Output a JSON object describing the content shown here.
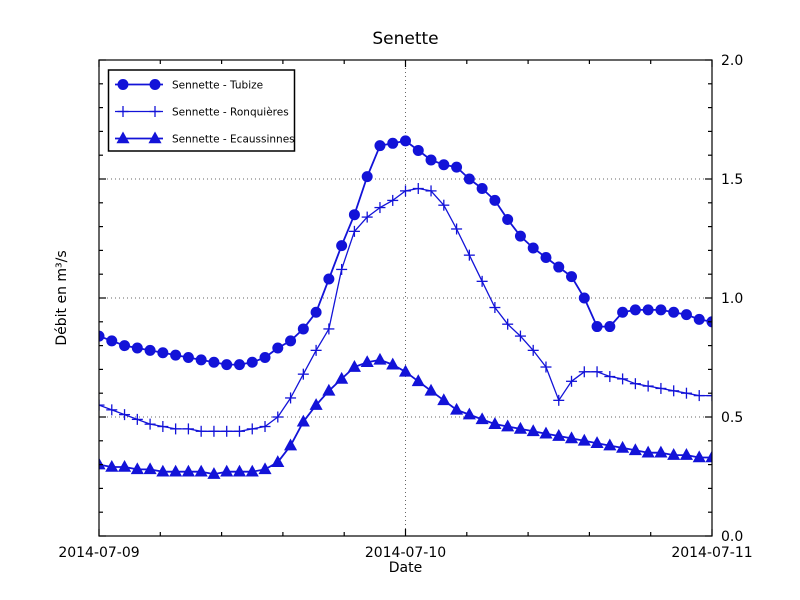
{
  "figure": {
    "title": "Senette",
    "xlabel": "Date",
    "ylabel": "Débit en m³/s"
  },
  "chart_data": {
    "type": "line",
    "title": "Senette",
    "xlabel": "Date",
    "ylabel": "Débit en m³/s",
    "x_start": "2014-07-09 00:00",
    "x_end": "2014-07-11 00:00",
    "x_step_hours": 1,
    "xtick_labels": [
      "2014-07-09",
      "2014-07-10",
      "2014-07-11"
    ],
    "ytick_labels": [
      "0.0",
      "0.5",
      "1.0",
      "1.5",
      "2.0"
    ],
    "yticks": [
      0.0,
      0.5,
      1.0,
      1.5,
      2.0
    ],
    "ylim": [
      0.0,
      2.0
    ],
    "grid": "dotted on major ticks",
    "legend_position": "upper-left",
    "line_color": "#1313D8",
    "axis_color": "#000000",
    "grid_color": "#666666",
    "series": [
      {
        "name": "Sennette - Tubize",
        "marker": "circle",
        "values": [
          0.84,
          0.82,
          0.8,
          0.79,
          0.78,
          0.77,
          0.76,
          0.75,
          0.74,
          0.73,
          0.72,
          0.72,
          0.73,
          0.75,
          0.79,
          0.82,
          0.87,
          0.94,
          1.08,
          1.22,
          1.35,
          1.51,
          1.64,
          1.65,
          1.66,
          1.62,
          1.58,
          1.56,
          1.55,
          1.5,
          1.46,
          1.41,
          1.33,
          1.26,
          1.21,
          1.17,
          1.13,
          1.09,
          1.0,
          0.88,
          0.88,
          0.94,
          0.95,
          0.95,
          0.95,
          0.94,
          0.93,
          0.91,
          0.9
        ]
      },
      {
        "name": "Sennette - Ronquières",
        "marker": "plus",
        "values": [
          0.55,
          0.53,
          0.51,
          0.49,
          0.47,
          0.46,
          0.45,
          0.45,
          0.44,
          0.44,
          0.44,
          0.44,
          0.45,
          0.46,
          0.5,
          0.58,
          0.68,
          0.78,
          0.87,
          1.12,
          1.28,
          1.34,
          1.38,
          1.41,
          1.45,
          1.46,
          1.45,
          1.39,
          1.29,
          1.18,
          1.07,
          0.96,
          0.89,
          0.84,
          0.78,
          0.71,
          0.57,
          0.65,
          0.69,
          0.69,
          0.67,
          0.66,
          0.64,
          0.63,
          0.62,
          0.61,
          0.6,
          0.59,
          0.59
        ]
      },
      {
        "name": "Sennette - Ecaussinnes",
        "marker": "triangle",
        "values": [
          0.3,
          0.29,
          0.29,
          0.28,
          0.28,
          0.27,
          0.27,
          0.27,
          0.27,
          0.26,
          0.27,
          0.27,
          0.27,
          0.28,
          0.31,
          0.38,
          0.48,
          0.55,
          0.61,
          0.66,
          0.71,
          0.73,
          0.74,
          0.72,
          0.69,
          0.65,
          0.61,
          0.57,
          0.53,
          0.51,
          0.49,
          0.47,
          0.46,
          0.45,
          0.44,
          0.43,
          0.42,
          0.41,
          0.4,
          0.39,
          0.38,
          0.37,
          0.36,
          0.35,
          0.35,
          0.34,
          0.34,
          0.33,
          0.33
        ]
      }
    ]
  }
}
